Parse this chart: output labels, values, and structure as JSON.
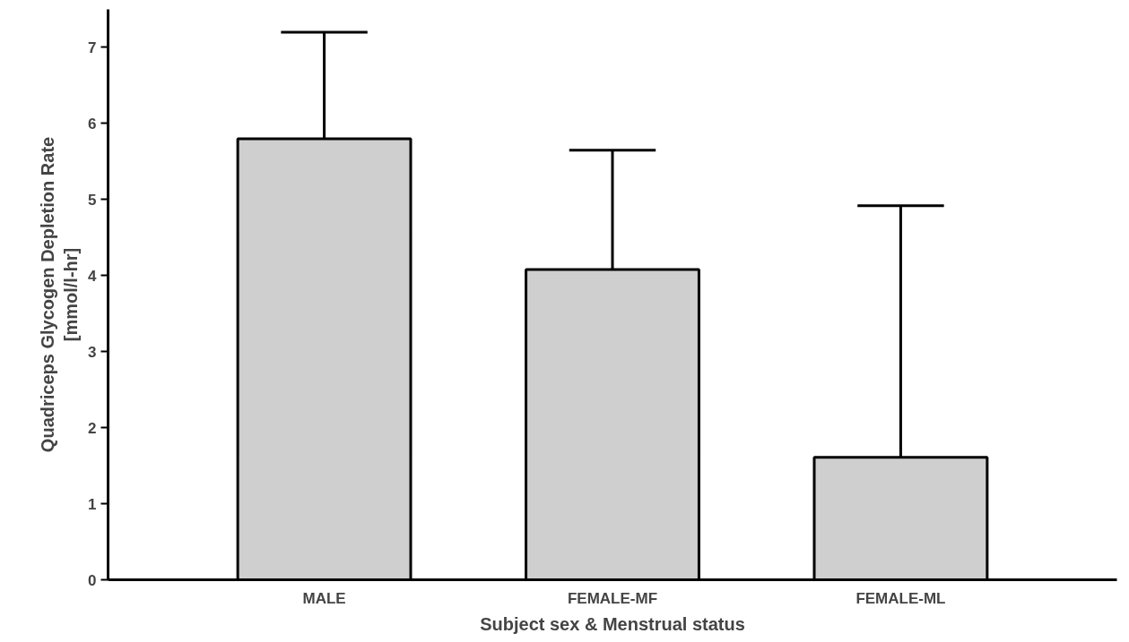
{
  "chart_data": {
    "type": "bar",
    "xlabel": "Subject sex & Menstrual status",
    "ylabel": "Quadriceps Glycogen Depletion Rate\n[mmol/l-hr]",
    "categories": [
      "MALE",
      "FEMALE-MF",
      "FEMALE-ML"
    ],
    "values": [
      5.8,
      4.08,
      1.61
    ],
    "errors": [
      [
        5.8,
        7.2
      ],
      [
        4.08,
        5.65
      ],
      [
        1.61,
        4.92
      ]
    ],
    "color": "#cfcfcf",
    "ylim": [
      0,
      7.5
    ],
    "yticks": [
      0,
      1,
      2,
      3,
      4,
      5,
      6,
      7
    ],
    "grid": false
  }
}
